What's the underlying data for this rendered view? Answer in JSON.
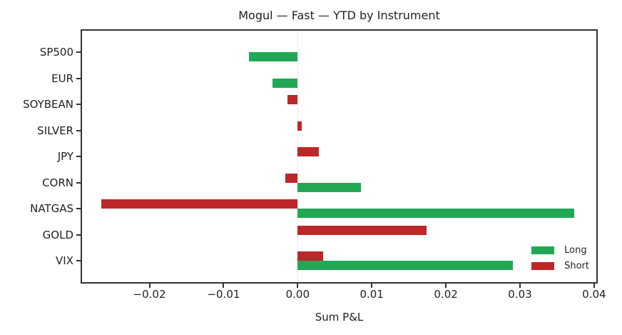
{
  "chart_data": {
    "type": "bar",
    "orientation": "horizontal",
    "title": "Mogul — Fast — YTD by Instrument",
    "xlabel": "Sum P&L",
    "ylabel": "",
    "categories": [
      "SP500",
      "EUR",
      "SOYBEAN",
      "SILVER",
      "JPY",
      "CORN",
      "NATGAS",
      "GOLD",
      "VIX"
    ],
    "series": [
      {
        "name": "Long",
        "color": "#22a854",
        "values": [
          -0.0066,
          -0.0034,
          null,
          null,
          null,
          0.0085,
          0.0373,
          null,
          0.029
        ]
      },
      {
        "name": "Short",
        "color": "#be2628",
        "values": [
          null,
          null,
          -0.0014,
          0.0005,
          0.0029,
          -0.0017,
          -0.0265,
          0.0174,
          0.0034
        ]
      }
    ],
    "xlim": [
      -0.0291,
      0.0403
    ],
    "xticks": [
      -0.02,
      -0.01,
      0.0,
      0.01,
      0.02,
      0.03,
      0.04
    ],
    "xtick_labels": [
      "−0.02",
      "−0.01",
      "0.00",
      "0.01",
      "0.02",
      "0.03",
      "0.04"
    ],
    "grid": false,
    "legend_position": "lower right",
    "zero_line": true
  }
}
